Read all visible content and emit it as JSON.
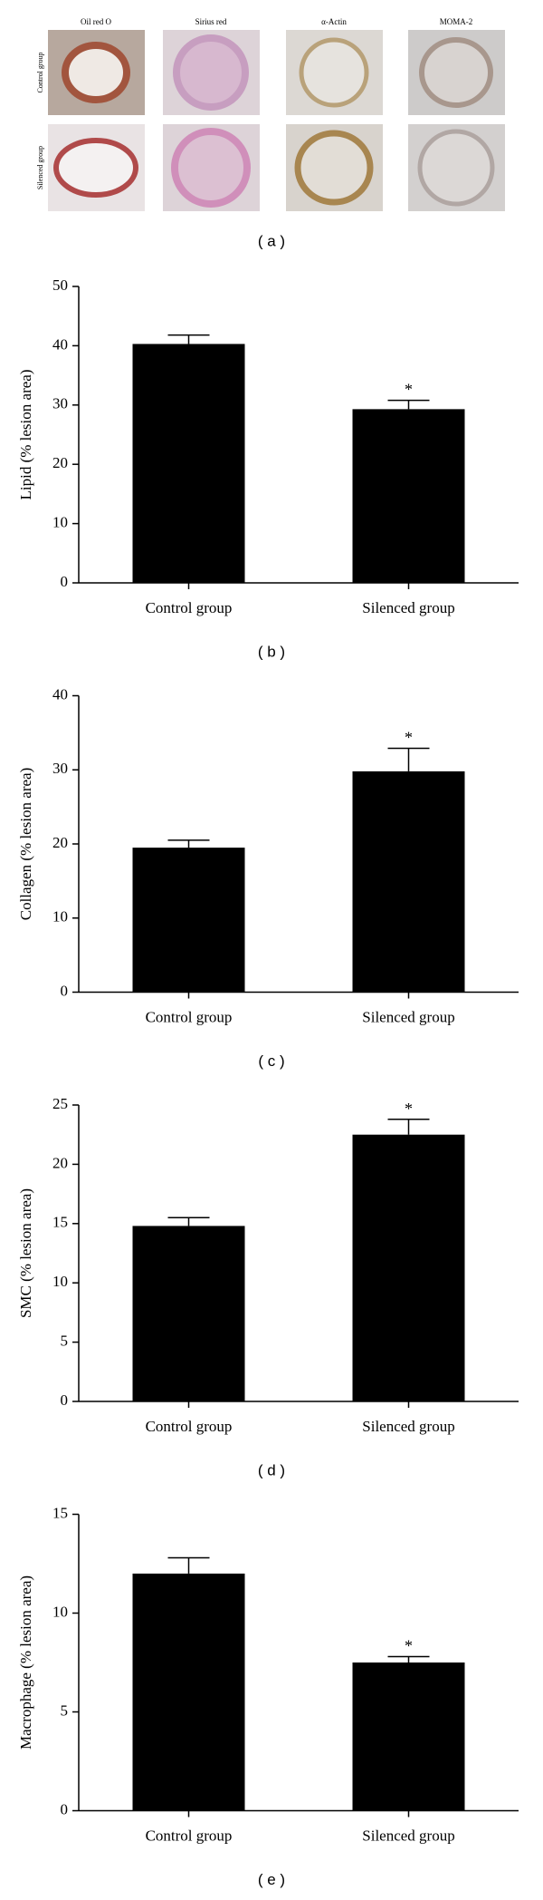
{
  "panel_a": {
    "columns": [
      "Oil red O",
      "Sirius red",
      "α-Actin",
      "MOMA-2"
    ],
    "rows": [
      "Control group",
      "Silenced group"
    ],
    "label": "( a )"
  },
  "chart_data": [
    {
      "type": "bar",
      "label": "( b )",
      "y_label": "Lipid (% lesion area)",
      "categories": [
        "Control group",
        "Silenced group"
      ],
      "values": [
        40.3,
        29.3
      ],
      "errors": [
        1.5,
        1.5
      ],
      "color": "#000000",
      "ylim": [
        0,
        50
      ],
      "yticks": [
        0,
        10,
        20,
        30,
        40,
        50
      ],
      "annotations": [
        {
          "text": "*",
          "x": "Silenced group"
        }
      ]
    },
    {
      "type": "bar",
      "label": "( c )",
      "y_label": "Collagen (% lesion area)",
      "categories": [
        "Control group",
        "Silenced group"
      ],
      "values": [
        19.5,
        29.8
      ],
      "errors": [
        1.0,
        3.1
      ],
      "color": "#000000",
      "ylim": [
        0,
        40
      ],
      "yticks": [
        0,
        10,
        20,
        30,
        40
      ],
      "annotations": [
        {
          "text": "*",
          "x": "Silenced group"
        }
      ]
    },
    {
      "type": "bar",
      "label": "( d )",
      "y_label": "SMC (% lesion area)",
      "categories": [
        "Control group",
        "Silenced group"
      ],
      "values": [
        14.8,
        22.5
      ],
      "errors": [
        0.7,
        1.3
      ],
      "color": "#000000",
      "ylim": [
        0,
        25
      ],
      "yticks": [
        0,
        5,
        10,
        15,
        20,
        25
      ],
      "annotations": [
        {
          "text": "*",
          "x": "Silenced group"
        }
      ]
    },
    {
      "type": "bar",
      "label": "( e )",
      "y_label": "Macrophage (% lesion area)",
      "categories": [
        "Control group",
        "Silenced group"
      ],
      "values": [
        12.0,
        7.5
      ],
      "errors": [
        0.8,
        0.3
      ],
      "color": "#000000",
      "ylim": [
        0,
        15
      ],
      "yticks": [
        0,
        5,
        10,
        15
      ],
      "annotations": [
        {
          "text": "*",
          "x": "Silenced group"
        }
      ]
    }
  ]
}
